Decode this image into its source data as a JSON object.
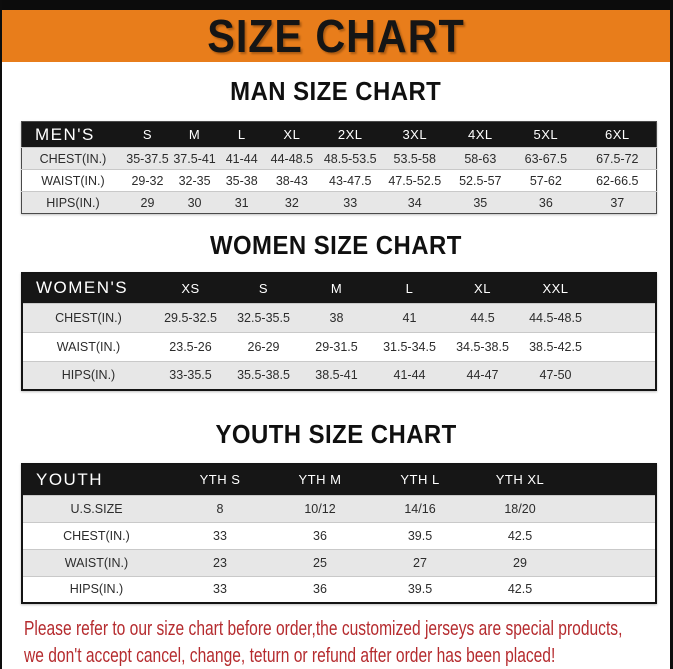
{
  "banner": {
    "title": "SIZE CHART"
  },
  "colors": {
    "banner_orange": "#e87d1b",
    "header_black": "#161616",
    "row_gray": "#e7e7e7",
    "footer_red": "#b52b2e"
  },
  "sections": [
    {
      "heading": "MAN SIZE CHART",
      "table": {
        "header": [
          "MEN'S",
          "S",
          "M",
          "L",
          "XL",
          "2XL",
          "3XL",
          "4XL",
          "5XL",
          "6XL"
        ],
        "rows": [
          {
            "label": "CHEST(IN.)",
            "values": [
              "35-37.5",
              "37.5-41",
              "41-44",
              "44-48.5",
              "48.5-53.5",
              "53.5-58",
              "58-63",
              "63-67.5",
              "67.5-72"
            ]
          },
          {
            "label": "WAIST(IN.)",
            "values": [
              "29-32",
              "32-35",
              "35-38",
              "38-43",
              "43-47.5",
              "47.5-52.5",
              "52.5-57",
              "57-62",
              "62-66.5"
            ]
          },
          {
            "label": "HIPS(IN.)",
            "values": [
              "29",
              "30",
              "31",
              "32",
              "33",
              "34",
              "35",
              "36",
              "37"
            ]
          }
        ]
      }
    },
    {
      "heading": "WOMEN SIZE CHART",
      "table": {
        "header": [
          "WOMEN'S",
          "XS",
          "S",
          "M",
          "L",
          "XL",
          "XXL"
        ],
        "rows": [
          {
            "label": "CHEST(IN.)",
            "values": [
              "29.5-32.5",
              "32.5-35.5",
              "38",
              "41",
              "44.5",
              "44.5-48.5"
            ]
          },
          {
            "label": "WAIST(IN.)",
            "values": [
              "23.5-26",
              "26-29",
              "29-31.5",
              "31.5-34.5",
              "34.5-38.5",
              "38.5-42.5"
            ]
          },
          {
            "label": "HIPS(IN.)",
            "values": [
              "33-35.5",
              "35.5-38.5",
              "38.5-41",
              "41-44",
              "44-47",
              "47-50"
            ]
          }
        ]
      }
    },
    {
      "heading": "YOUTH SIZE CHART",
      "table": {
        "header": [
          "YOUTH",
          "YTH S",
          "YTH M",
          "YTH L",
          "YTH XL"
        ],
        "rows": [
          {
            "label": "U.S.SIZE",
            "values": [
              "8",
              "10/12",
              "14/16",
              "18/20"
            ]
          },
          {
            "label": "CHEST(IN.)",
            "values": [
              "33",
              "36",
              "39.5",
              "42.5"
            ]
          },
          {
            "label": "WAIST(IN.)",
            "values": [
              "23",
              "25",
              "27",
              "29"
            ]
          },
          {
            "label": "HIPS(IN.)",
            "values": [
              "33",
              "36",
              "39.5",
              "42.5"
            ]
          }
        ]
      }
    }
  ],
  "footer": {
    "lines": [
      "Please refer to our size chart before order,the customized jerseys are special products,",
      "we don't accept cancel, change, teturn or refund after order has been placed!"
    ]
  }
}
